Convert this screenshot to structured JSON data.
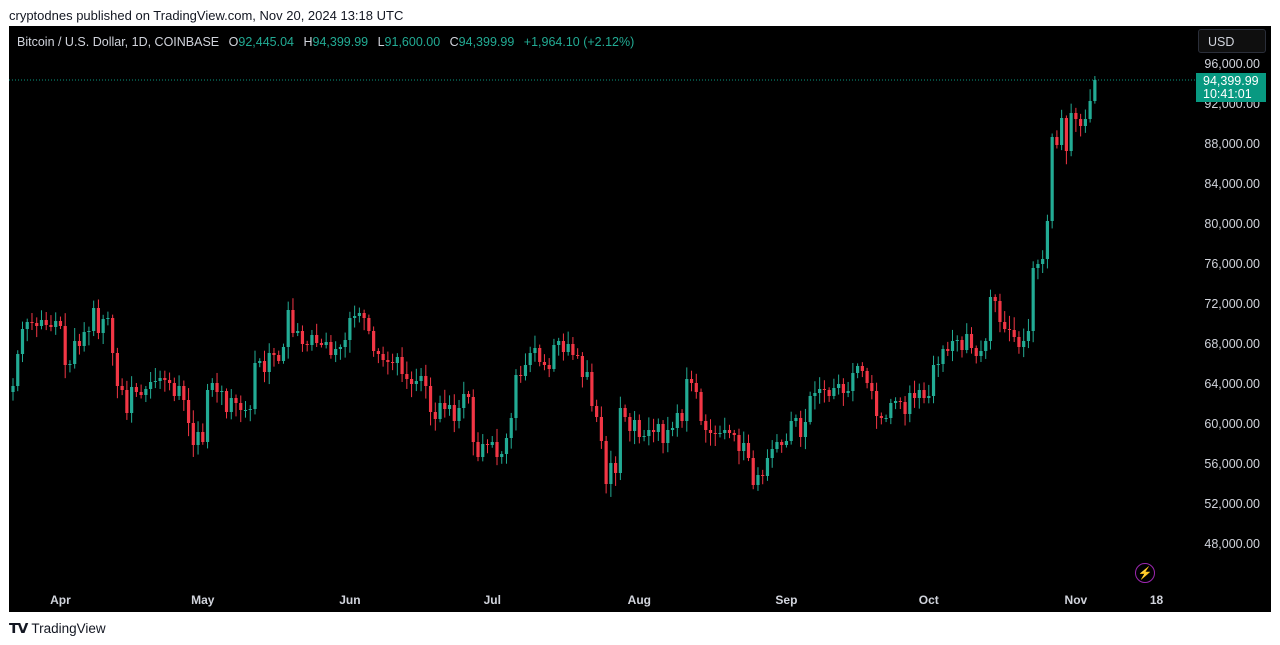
{
  "publisher_line": "cryptodnes published on TradingView.com, Nov 20, 2024 13:18 UTC",
  "legend": {
    "symbol": "Bitcoin / U.S. Dollar, 1D, COINBASE",
    "o_label": "O",
    "o_value": "92,445.04",
    "h_label": "H",
    "h_value": "94,399.99",
    "l_label": "L",
    "l_value": "91,600.00",
    "c_label": "C",
    "c_value": "94,399.99",
    "change": "+1,964.10 (+2.12%)"
  },
  "currency_button": "USD",
  "price_tag": {
    "price": "94,399.99",
    "countdown": "10:41:01"
  },
  "footer": {
    "brand": "TradingView"
  },
  "colors": {
    "up": "#22ab94",
    "down": "#f23645",
    "background": "#000000",
    "axis_text": "#d1d4dc"
  },
  "chart_data": {
    "type": "candlestick",
    "y_ticks": [
      "96,000.00",
      "92,000.00",
      "88,000.00",
      "84,000.00",
      "80,000.00",
      "76,000.00",
      "72,000.00",
      "68,000.00",
      "64,000.00",
      "60,000.00",
      "56,000.00",
      "52,000.00",
      "48,000.00"
    ],
    "y_tick_values": [
      96000,
      92000,
      88000,
      84000,
      80000,
      76000,
      72000,
      68000,
      64000,
      60000,
      56000,
      52000,
      48000
    ],
    "x_ticks": [
      "Apr",
      "May",
      "Jun",
      "Jul",
      "Aug",
      "Sep",
      "Oct",
      "Nov",
      "18"
    ],
    "x_tick_dates": [
      "2024-04-01",
      "2024-05-01",
      "2024-06-01",
      "2024-07-01",
      "2024-08-01",
      "2024-09-01",
      "2024-10-01",
      "2024-11-01",
      "2024-11-18"
    ],
    "last_price": 94399.99,
    "series": [
      {
        "start": "2024-03-22",
        "close": [
          63800,
          67000,
          69500,
          70200,
          70100,
          69800,
          70400,
          69900,
          69700,
          70300,
          69800,
          65900,
          66000,
          68300,
          67800,
          69200,
          69300,
          71600,
          69100,
          70500,
          70600,
          67100,
          63800,
          63400,
          61100,
          63700,
          63200,
          62900,
          63500,
          64200,
          64300,
          64600,
          64400,
          64100,
          62800,
          63800,
          62400,
          60100,
          57900,
          59200,
          58200,
          63400,
          64100,
          63200,
          63300,
          61200,
          62600,
          62100,
          61400,
          61400,
          61500,
          66100,
          66300,
          65200,
          67100,
          66900,
          66300,
          67700,
          71400,
          69100,
          69300,
          68000,
          67900,
          68900,
          68100,
          67900,
          68200,
          66900,
          67500,
          67700,
          68400,
          70600,
          70800,
          71100,
          70600,
          69300,
          67300,
          67000,
          66400,
          66200,
          66100,
          66700,
          65000,
          64500,
          64000,
          64300,
          64800,
          63800,
          61200,
          60500,
          62100,
          61500,
          61900,
          60300,
          61600,
          63000,
          62700,
          58200,
          56700,
          58000,
          57900,
          58200,
          56700,
          57000,
          58600,
          60600,
          64900,
          64800,
          65900,
          67100,
          67600,
          66200,
          65900,
          65500,
          67900,
          68300,
          67200,
          68000,
          66900,
          66800,
          64700,
          65200,
          61800,
          60700,
          58300,
          54000,
          56100,
          55100,
          61600,
          60700,
          59300,
          60400,
          58700,
          58800,
          59400,
          59200,
          60000,
          58100,
          59400,
          59600,
          61100,
          60300,
          64500,
          64100,
          63200,
          60300,
          59400,
          59100,
          59000,
          59100,
          59400,
          59100,
          58900,
          57300,
          58100,
          56600,
          53900,
          54900,
          54800,
          56600,
          57500,
          58200,
          57900,
          58300,
          60300,
          60600,
          58700,
          60200,
          62800,
          63100,
          63500,
          63400,
          62800,
          63600,
          64000,
          63100,
          63300,
          65100,
          65800,
          65300,
          64100,
          63300,
          60800,
          60600,
          60600,
          62100,
          62300,
          62200,
          61000,
          63100,
          62600,
          63400,
          62600,
          62800,
          65900,
          66000,
          67500,
          67300,
          68300,
          68400,
          67400,
          69000,
          67600,
          66800,
          67300,
          68300,
          72700,
          72300,
          70200,
          69500,
          69400,
          68700,
          67700,
          68300,
          69300,
          75600,
          76000,
          76500,
          80300,
          88700,
          87900,
          90600,
          87300,
          91100,
          90500,
          89800,
          90500,
          92300,
          94400
        ]
      }
    ]
  }
}
